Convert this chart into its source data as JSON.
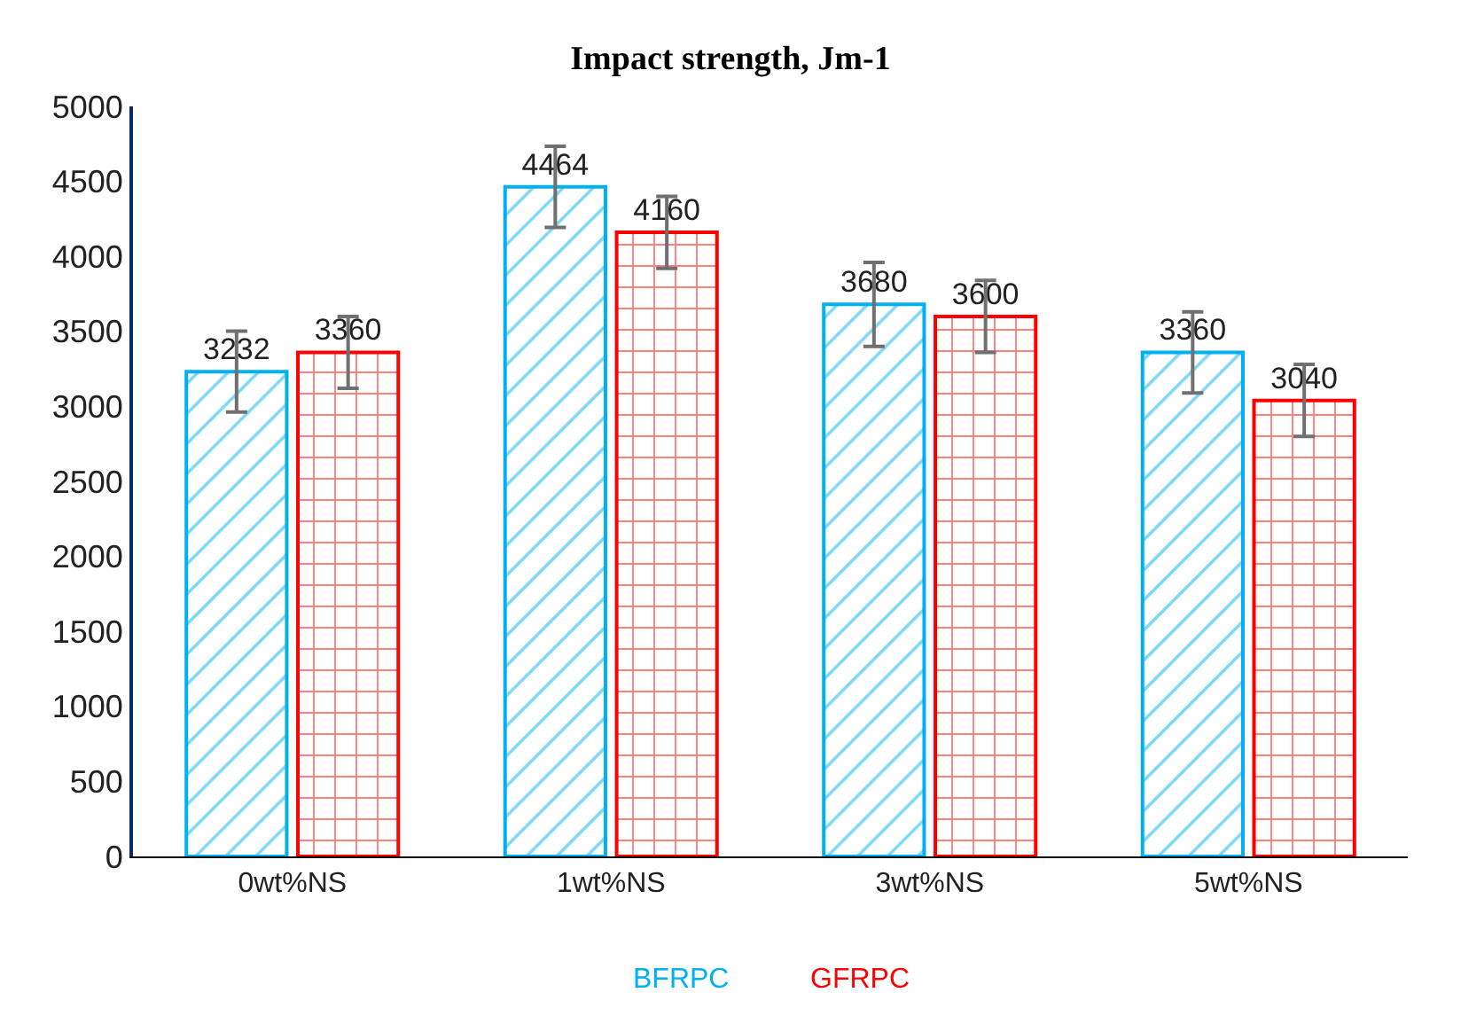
{
  "chart_data": {
    "type": "bar",
    "title": "Impact strength, Jm-1",
    "categories": [
      "0wt%NS",
      "1wt%NS",
      "3wt%NS",
      "5wt%NS"
    ],
    "series": [
      {
        "name": "BFRPC",
        "color": "#00b0f0",
        "values": [
          3232,
          4464,
          3680,
          3360
        ],
        "errors": [
          270,
          270,
          280,
          270
        ]
      },
      {
        "name": "GFRPC",
        "color": "#ff0000",
        "values": [
          3360,
          4160,
          3600,
          3040
        ],
        "errors": [
          240,
          240,
          240,
          240
        ]
      }
    ],
    "ylim": [
      0,
      5000
    ],
    "yticks": [
      0,
      500,
      1000,
      1500,
      2000,
      2500,
      3000,
      3500,
      4000,
      4500,
      5000
    ],
    "data_labels": true,
    "legend": "bottom"
  }
}
